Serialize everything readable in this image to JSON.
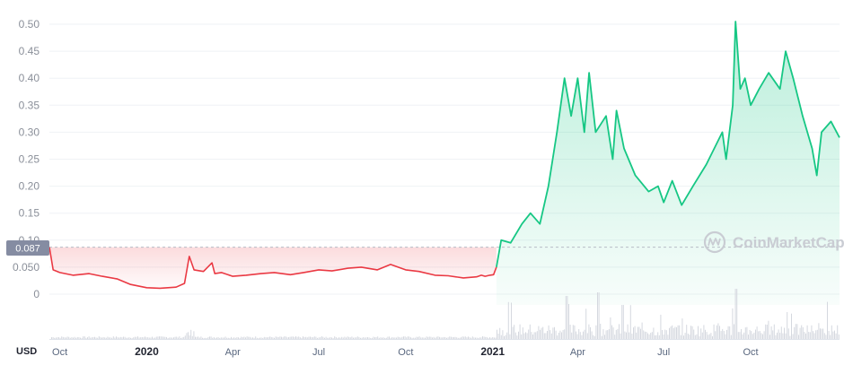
{
  "chart_data": {
    "type": "area",
    "currency_label": "USD",
    "watermark": "CoinMarketCap",
    "price_badge": "0.087",
    "ylim": [
      0,
      0.5
    ],
    "y_ticks": [
      {
        "value": 0.5,
        "label": "0.50"
      },
      {
        "value": 0.45,
        "label": "0.45"
      },
      {
        "value": 0.4,
        "label": "0.40"
      },
      {
        "value": 0.35,
        "label": "0.35"
      },
      {
        "value": 0.3,
        "label": "0.30"
      },
      {
        "value": 0.25,
        "label": "0.25"
      },
      {
        "value": 0.2,
        "label": "0.20"
      },
      {
        "value": 0.15,
        "label": "0.15"
      },
      {
        "value": 0.1,
        "label": "0.10"
      },
      {
        "value": 0.05,
        "label": "0.050"
      },
      {
        "value": 0,
        "label": "0"
      }
    ],
    "x_ticks": [
      {
        "date": "2019-10-01",
        "label": "Oct",
        "strong": false
      },
      {
        "date": "2020-01-01",
        "label": "2020",
        "strong": true
      },
      {
        "date": "2020-04-01",
        "label": "Apr",
        "strong": false
      },
      {
        "date": "2020-07-01",
        "label": "Jul",
        "strong": false
      },
      {
        "date": "2020-10-01",
        "label": "Oct",
        "strong": false
      },
      {
        "date": "2021-01-01",
        "label": "2021",
        "strong": true
      },
      {
        "date": "2021-04-01",
        "label": "Apr",
        "strong": false
      },
      {
        "date": "2021-07-01",
        "label": "Jul",
        "strong": false
      },
      {
        "date": "2021-10-01",
        "label": "Oct",
        "strong": false
      }
    ],
    "x_range": [
      "2019-09-20",
      "2022-01-03"
    ],
    "baseline_price": 0.087,
    "series": [
      {
        "x": [
          "2019-09-20",
          "2019-09-24",
          "2019-10-01",
          "2019-10-15",
          "2019-11-01",
          "2019-11-15",
          "2019-12-01",
          "2019-12-15",
          "2020-01-01",
          "2020-01-15",
          "2020-02-01",
          "2020-02-10",
          "2020-02-15",
          "2020-02-20",
          "2020-03-01",
          "2020-03-10",
          "2020-03-13",
          "2020-03-20",
          "2020-04-01",
          "2020-04-15",
          "2020-05-01",
          "2020-05-15",
          "2020-06-01",
          "2020-06-15",
          "2020-07-01",
          "2020-07-15",
          "2020-08-01",
          "2020-08-15",
          "2020-09-01",
          "2020-09-15",
          "2020-10-01",
          "2020-10-15",
          "2020-11-01",
          "2020-11-15",
          "2020-12-01",
          "2020-12-15",
          "2020-12-20",
          "2020-12-24",
          "2020-12-29",
          "2021-01-02",
          "2021-01-05",
          "2021-01-10",
          "2021-01-20",
          "2021-02-01",
          "2021-02-10",
          "2021-02-20",
          "2021-03-01",
          "2021-03-10",
          "2021-03-18",
          "2021-03-25",
          "2021-04-01",
          "2021-04-08",
          "2021-04-13",
          "2021-04-20",
          "2021-05-01",
          "2021-05-08",
          "2021-05-12",
          "2021-05-20",
          "2021-06-01",
          "2021-06-15",
          "2021-06-25",
          "2021-07-01",
          "2021-07-10",
          "2021-07-20",
          "2021-08-01",
          "2021-08-15",
          "2021-09-01",
          "2021-09-05",
          "2021-09-12",
          "2021-09-15",
          "2021-09-20",
          "2021-09-25",
          "2021-10-01",
          "2021-10-10",
          "2021-10-20",
          "2021-11-01",
          "2021-11-07",
          "2021-11-15",
          "2021-11-25",
          "2021-12-05",
          "2021-12-10",
          "2021-12-15",
          "2021-12-25",
          "2022-01-03"
        ],
        "y": [
          0.087,
          0.045,
          0.04,
          0.035,
          0.038,
          0.033,
          0.028,
          0.018,
          0.012,
          0.011,
          0.013,
          0.02,
          0.07,
          0.045,
          0.042,
          0.058,
          0.038,
          0.04,
          0.033,
          0.035,
          0.038,
          0.04,
          0.036,
          0.04,
          0.045,
          0.043,
          0.048,
          0.05,
          0.045,
          0.055,
          0.045,
          0.042,
          0.035,
          0.034,
          0.03,
          0.032,
          0.035,
          0.033,
          0.035,
          0.036,
          0.05,
          0.1,
          0.095,
          0.13,
          0.15,
          0.13,
          0.2,
          0.3,
          0.4,
          0.33,
          0.4,
          0.3,
          0.41,
          0.3,
          0.33,
          0.25,
          0.34,
          0.27,
          0.22,
          0.19,
          0.2,
          0.17,
          0.21,
          0.165,
          0.2,
          0.24,
          0.3,
          0.25,
          0.35,
          0.505,
          0.38,
          0.4,
          0.35,
          0.38,
          0.41,
          0.38,
          0.45,
          0.4,
          0.33,
          0.27,
          0.22,
          0.3,
          0.32,
          0.29
        ]
      }
    ]
  }
}
